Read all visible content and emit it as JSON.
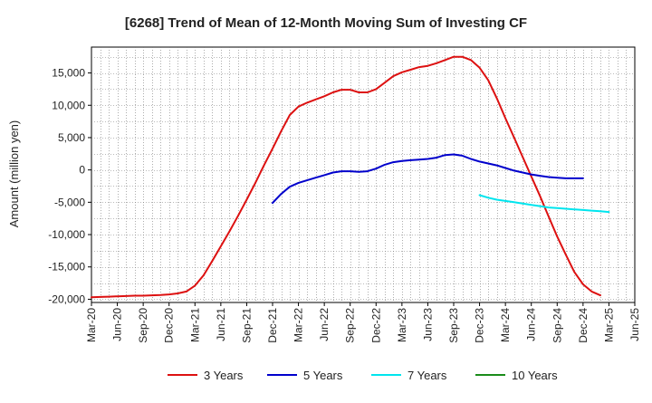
{
  "chart_data": {
    "type": "line",
    "title": "[6268]  Trend of Mean of 12-Month Moving Sum of Investing CF",
    "xlabel": "",
    "ylabel": "Amount (million yen)",
    "ylim": [
      -20500,
      19000
    ],
    "yticks": [
      -20000,
      -15000,
      -10000,
      -5000,
      0,
      5000,
      10000,
      15000
    ],
    "ytick_labels": [
      "-20,000",
      "-15,000",
      "-10,000",
      "-5,000",
      "0",
      "5,000",
      "10,000",
      "15,000"
    ],
    "xticks": [
      "Mar-20",
      "Jun-20",
      "Sep-20",
      "Dec-20",
      "Mar-21",
      "Jun-21",
      "Sep-21",
      "Dec-21",
      "Mar-22",
      "Jun-22",
      "Sep-22",
      "Dec-22",
      "Mar-23",
      "Jun-23",
      "Sep-23",
      "Dec-23",
      "Mar-24",
      "Jun-24",
      "Sep-24",
      "Dec-24",
      "Mar-25",
      "Jun-25"
    ],
    "grid": true,
    "legend_position": "bottom",
    "series": [
      {
        "name": "3 Years",
        "color": "#dd1111",
        "start_month_index": 0,
        "values": [
          -19700,
          -19650,
          -19600,
          -19550,
          -19500,
          -19450,
          -19450,
          -19400,
          -19350,
          -19250,
          -19100,
          -18800,
          -17900,
          -16300,
          -14100,
          -11800,
          -9500,
          -7100,
          -4600,
          -2000,
          700,
          3300,
          6000,
          8500,
          9800,
          10400,
          10900,
          11400,
          12000,
          12400,
          12400,
          12000,
          12000,
          12500,
          13500,
          14500,
          15100,
          15500,
          15900,
          16100,
          16500,
          17000,
          17500,
          17500,
          17000,
          15800,
          13900,
          11100,
          8000,
          5000,
          2000,
          -1000,
          -4000,
          -7200,
          -10300,
          -13100,
          -15800,
          -17700,
          -18800,
          -19400
        ],
        "value_labels": []
      },
      {
        "name": "5 Years",
        "color": "#0000cc",
        "start_month_index": 21,
        "values": [
          -5100,
          -3700,
          -2600,
          -2000,
          -1600,
          -1200,
          -800,
          -400,
          -200,
          -200,
          -300,
          -200,
          200,
          800,
          1200,
          1400,
          1500,
          1600,
          1700,
          1900,
          2300,
          2400,
          2200,
          1700,
          1300,
          1000,
          700,
          300,
          -100,
          -400,
          -700,
          -900,
          -1100,
          -1200,
          -1300,
          -1300,
          -1300
        ],
        "value_labels": []
      },
      {
        "name": "7 Years",
        "color": "#00e5ee",
        "start_month_index": 45,
        "values": [
          -3900,
          -4300,
          -4600,
          -4800,
          -5000,
          -5200,
          -5400,
          -5600,
          -5800,
          -5900,
          -6000,
          -6100,
          -6200,
          -6300,
          -6400,
          -6500
        ],
        "value_labels": []
      },
      {
        "name": "10 Years",
        "color": "#1a8c1a",
        "start_month_index": 0,
        "values": [],
        "value_labels": []
      }
    ]
  }
}
